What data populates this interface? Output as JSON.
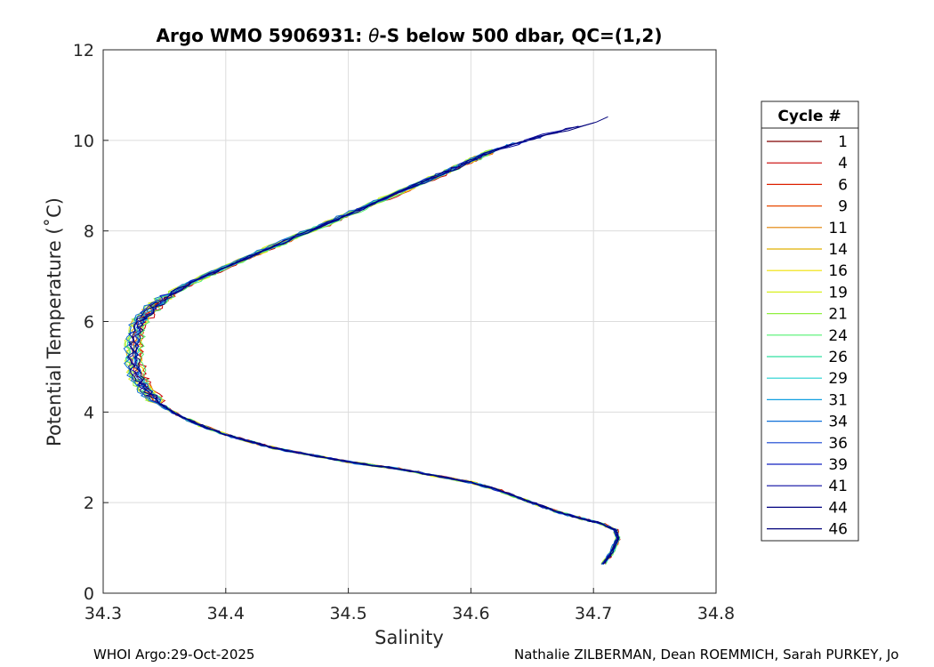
{
  "chart_data": {
    "type": "line",
    "title_prefix": "Argo WMO 5906931: ",
    "title_theta": "θ",
    "title_suffix": "-S below 500 dbar,  QC=(1,2)",
    "xlabel": "Salinity",
    "ylabel": "Potential Temperature (˚C)",
    "xlim": [
      34.3,
      34.8
    ],
    "ylim": [
      0,
      12
    ],
    "xticks": [
      "34.3",
      "34.4",
      "34.5",
      "34.6",
      "34.7",
      "34.8"
    ],
    "yticks": [
      "0",
      "2",
      "4",
      "6",
      "8",
      "10",
      "12"
    ],
    "grid": true,
    "legend_title": "Cycle #",
    "legend_position": "outside-right",
    "legend": [
      "1",
      "4",
      "6",
      "9",
      "11",
      "14",
      "16",
      "19",
      "21",
      "24",
      "26",
      "29",
      "31",
      "34",
      "36",
      "39",
      "41",
      "44",
      "46"
    ],
    "colors": [
      "#800000",
      "#c80000",
      "#dd2000",
      "#e84800",
      "#e08000",
      "#e0b000",
      "#f0e000",
      "#d8f020",
      "#90f040",
      "#50f070",
      "#30e0a0",
      "#20d0d0",
      "#10a0e0",
      "#1070d8",
      "#1040d0",
      "#1020c0",
      "#0a0aa0",
      "#000080",
      "#00007a"
    ],
    "base_curve": {
      "salinity": [
        34.708,
        34.715,
        34.72,
        34.718,
        34.705,
        34.69,
        34.67,
        34.655,
        34.64,
        34.62,
        34.6,
        34.57,
        34.54,
        34.5,
        34.47,
        34.44,
        34.42,
        34.4,
        34.38,
        34.36,
        34.345,
        34.335,
        34.328,
        34.325,
        34.326,
        34.33,
        34.34,
        34.355,
        34.375,
        34.4,
        34.43,
        34.46,
        34.49,
        34.52,
        34.55,
        34.58,
        34.6,
        34.62
      ],
      "theta": [
        0.65,
        0.9,
        1.2,
        1.4,
        1.55,
        1.65,
        1.8,
        1.95,
        2.1,
        2.3,
        2.45,
        2.6,
        2.75,
        2.9,
        3.05,
        3.2,
        3.35,
        3.5,
        3.7,
        3.95,
        4.2,
        4.5,
        4.8,
        5.2,
        5.6,
        6.0,
        6.3,
        6.6,
        6.9,
        7.2,
        7.55,
        7.9,
        8.25,
        8.6,
        8.95,
        9.3,
        9.55,
        9.8
      ]
    },
    "upper_tail_max": {
      "salinity": 34.725,
      "theta": 10.6
    },
    "footer_left": "WHOI Argo:29-Oct-2025",
    "footer_right": "Nathalie ZILBERMAN, Dean ROEMMICH, Sarah PURKEY, Jo"
  }
}
